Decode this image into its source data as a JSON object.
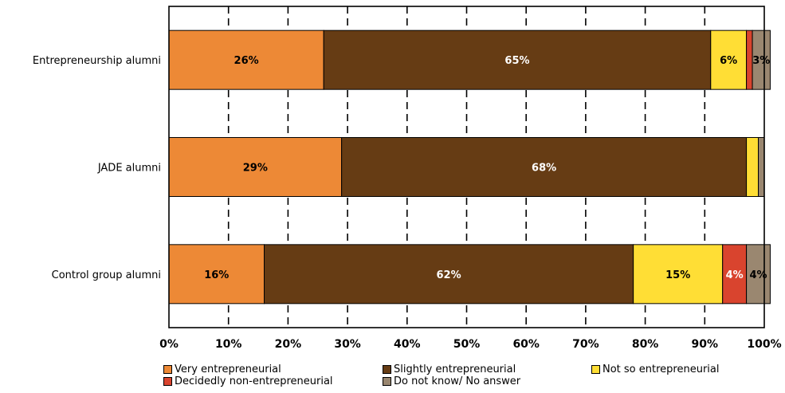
{
  "chart_data": {
    "type": "bar",
    "orientation": "horizontal",
    "stacked": true,
    "categories": [
      "Entrepreneurship alumni",
      "JADE alumni",
      "Control group alumni"
    ],
    "series": [
      {
        "name": "Very entrepreneurial",
        "color": "#ED8936",
        "values": [
          26,
          29,
          16
        ],
        "labels": [
          "26%",
          "29%",
          "16%"
        ],
        "label_color": "#000000"
      },
      {
        "name": "Slightly entrepreneurial",
        "color": "#663C14",
        "values": [
          65,
          68,
          62
        ],
        "labels": [
          "65%",
          "68%",
          "62%"
        ],
        "label_color": "#FFFFFF"
      },
      {
        "name": "Not so entrepreneurial",
        "color": "#FFDE35",
        "values": [
          6,
          2,
          15
        ],
        "labels": [
          "6%",
          "",
          "15%"
        ],
        "label_color": "#000000"
      },
      {
        "name": "Decidedly non-entrepreneurial",
        "color": "#D9442E",
        "values": [
          1,
          0,
          4
        ],
        "labels": [
          "",
          "",
          "4%"
        ],
        "label_color": "#FFFFFF"
      },
      {
        "name": "Do not know/ No answer",
        "color": "#9A8770",
        "values": [
          3,
          1,
          4
        ],
        "labels": [
          "3%",
          "",
          "4%"
        ],
        "label_color": "#000000"
      }
    ],
    "xlim": [
      0,
      100
    ],
    "x_ticks": [
      "0%",
      "10%",
      "20%",
      "30%",
      "40%",
      "50%",
      "60%",
      "70%",
      "80%",
      "90%",
      "100%"
    ],
    "grid": "vertical-dashed",
    "legend_position": "bottom"
  }
}
